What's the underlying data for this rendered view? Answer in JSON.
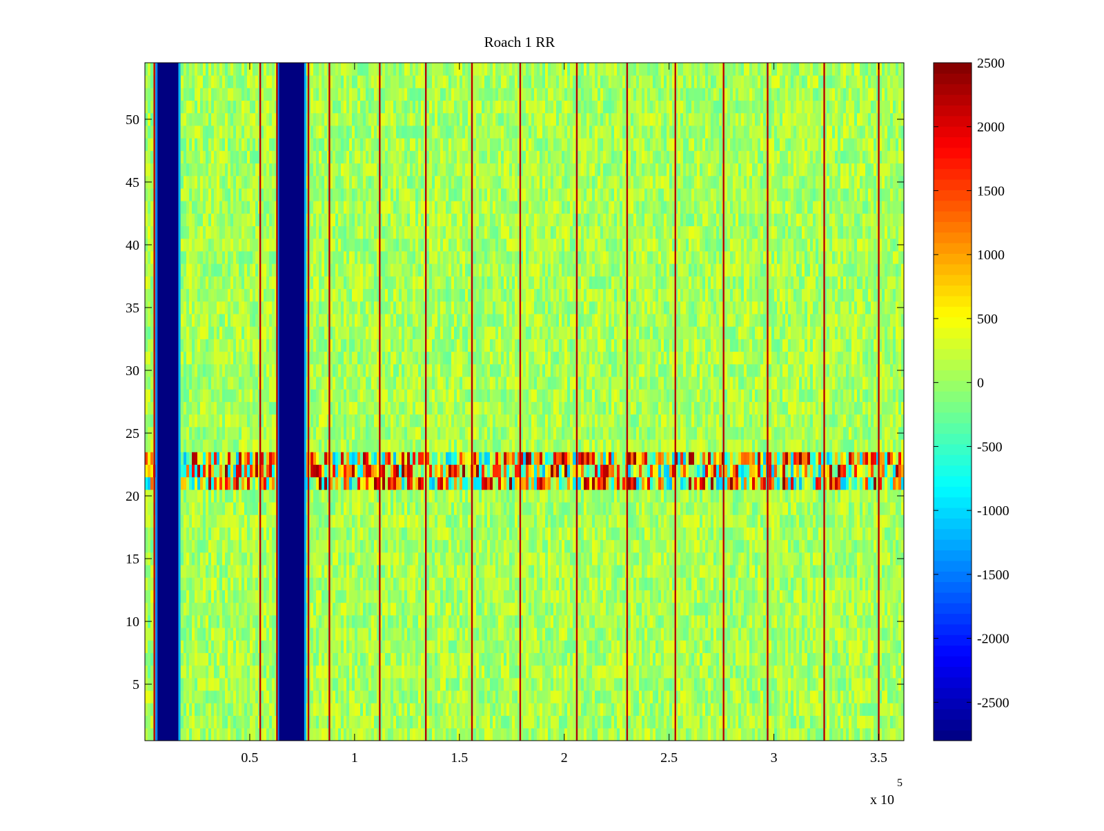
{
  "chart_data": {
    "type": "heatmap",
    "title": "Roach 1 RR",
    "xlabel": "",
    "ylabel": "",
    "x_multiplier": "x 10",
    "x_multiplier_exp": "5",
    "xlim": [
      0,
      3.62
    ],
    "ylim": [
      0.5,
      54.5
    ],
    "x_ticks": [
      {
        "value": 0.5,
        "label": "0.5"
      },
      {
        "value": 1,
        "label": "1"
      },
      {
        "value": 1.5,
        "label": "1.5"
      },
      {
        "value": 2,
        "label": "2"
      },
      {
        "value": 2.5,
        "label": "2.5"
      },
      {
        "value": 3,
        "label": "3"
      },
      {
        "value": 3.5,
        "label": "3.5"
      }
    ],
    "y_ticks": [
      {
        "value": 5,
        "label": "5"
      },
      {
        "value": 10,
        "label": "10"
      },
      {
        "value": 15,
        "label": "15"
      },
      {
        "value": 20,
        "label": "20"
      },
      {
        "value": 25,
        "label": "25"
      },
      {
        "value": 30,
        "label": "30"
      },
      {
        "value": 35,
        "label": "35"
      },
      {
        "value": 40,
        "label": "40"
      },
      {
        "value": 45,
        "label": "45"
      },
      {
        "value": 50,
        "label": "50"
      }
    ],
    "colorbar": {
      "colormap": "jet",
      "clim": [
        -2800,
        2500
      ],
      "ticks": [
        {
          "value": 2500,
          "label": "2500"
        },
        {
          "value": 2000,
          "label": "2000"
        },
        {
          "value": 1500,
          "label": "1500"
        },
        {
          "value": 1000,
          "label": "1000"
        },
        {
          "value": 500,
          "label": "500"
        },
        {
          "value": 0,
          "label": "0"
        },
        {
          "value": -500,
          "label": "-500"
        },
        {
          "value": -1000,
          "label": "-1000"
        },
        {
          "value": -1500,
          "label": "-1500"
        },
        {
          "value": -2000,
          "label": "-2000"
        },
        {
          "value": -2500,
          "label": "-2500"
        }
      ]
    },
    "background_value_range": [
      -600,
      600
    ],
    "low_bands": [
      {
        "x_start": 0.06,
        "x_end": 0.16,
        "value": -2800
      },
      {
        "x_start": 0.64,
        "x_end": 0.76,
        "value": -2800
      }
    ],
    "spike_lines_x": [
      0.045,
      0.55,
      0.63,
      0.78,
      0.88,
      1.12,
      1.34,
      1.56,
      1.79,
      2.06,
      2.3,
      2.53,
      2.76,
      2.97,
      3.24,
      3.5
    ],
    "anomaly_row_band": {
      "y_start": 20.5,
      "y_end": 23.5,
      "value_range": [
        -1200,
        2500
      ]
    }
  }
}
